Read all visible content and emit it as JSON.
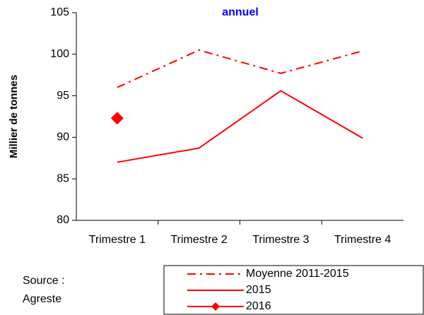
{
  "chart_data": {
    "type": "line",
    "title": "annuel",
    "y_label": "Millier de tonnes",
    "categories": [
      "Trimestre 1",
      "Trimestre 2",
      "Trimestre 3",
      "Trimestre 4"
    ],
    "series": [
      {
        "name": "Moyenne 2011-2015",
        "color": "#ff0000",
        "style": "dash-dot",
        "values": [
          96,
          100.5,
          97.7,
          100.4
        ]
      },
      {
        "name": "2015",
        "color": "#ff0000",
        "style": "solid",
        "values": [
          87,
          88.7,
          95.6,
          89.9
        ]
      },
      {
        "name": "2016",
        "color": "#ff0000",
        "style": "solid",
        "marker": "diamond",
        "values": [
          92.3,
          null,
          null,
          null
        ]
      }
    ],
    "ylim": [
      80,
      105
    ],
    "yticks": [
      80,
      85,
      90,
      95,
      100,
      105
    ],
    "source": [
      "Source :",
      "Agreste"
    ]
  }
}
